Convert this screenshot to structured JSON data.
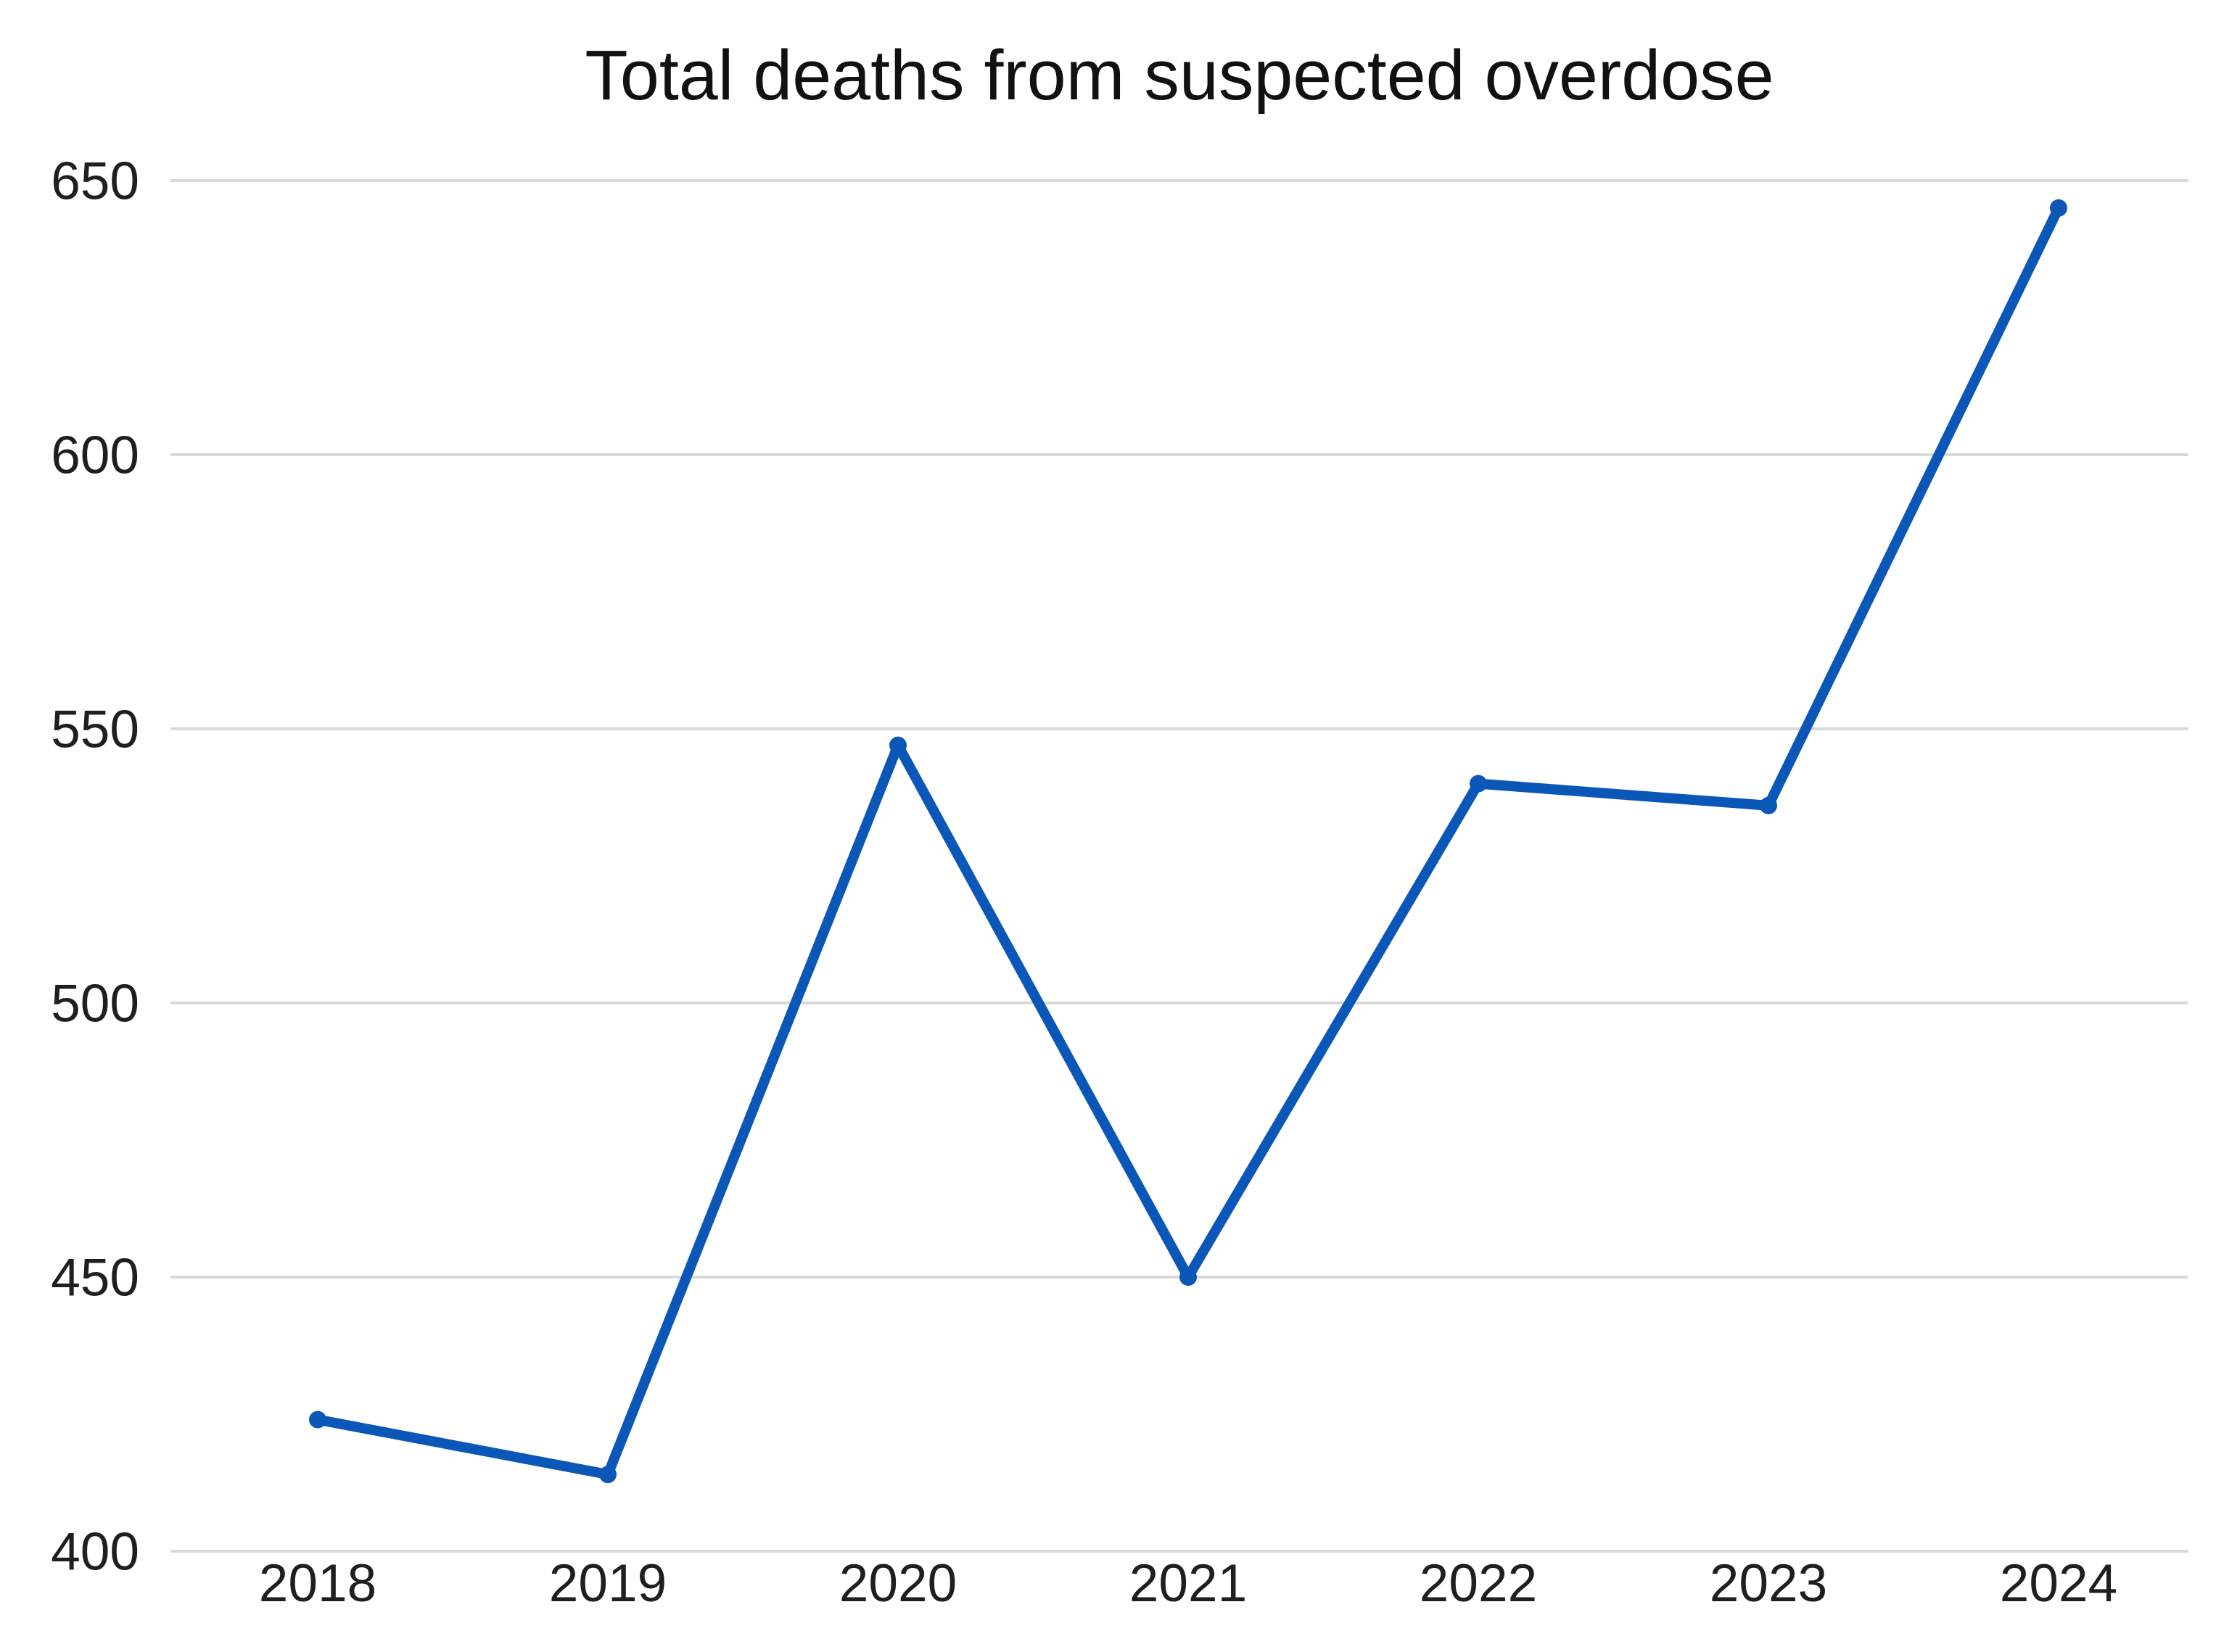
{
  "title": "Total deaths from suspected overdose",
  "colors": {
    "line": "#0b57b8",
    "marker": "#0b57b8",
    "gridline": "#d9d9d9",
    "title_text": "#111111",
    "axis_text": "#1f1f1f",
    "background": "#ffffff"
  },
  "chart_data": {
    "type": "line",
    "title": "Total deaths from suspected overdose",
    "categories": [
      "2018",
      "2019",
      "2020",
      "2021",
      "2022",
      "2023",
      "2024"
    ],
    "values": [
      424,
      414,
      547,
      450,
      540,
      536,
      645
    ],
    "series": [
      {
        "name": "Total deaths from suspected overdose",
        "values": [
          424,
          414,
          547,
          450,
          540,
          536,
          645
        ]
      }
    ],
    "xlabel": "",
    "ylabel": "",
    "ylim": [
      400,
      650
    ],
    "yticks": [
      650,
      600,
      550,
      500,
      450,
      400
    ],
    "grid": true,
    "legend": false,
    "marker": "circle"
  }
}
